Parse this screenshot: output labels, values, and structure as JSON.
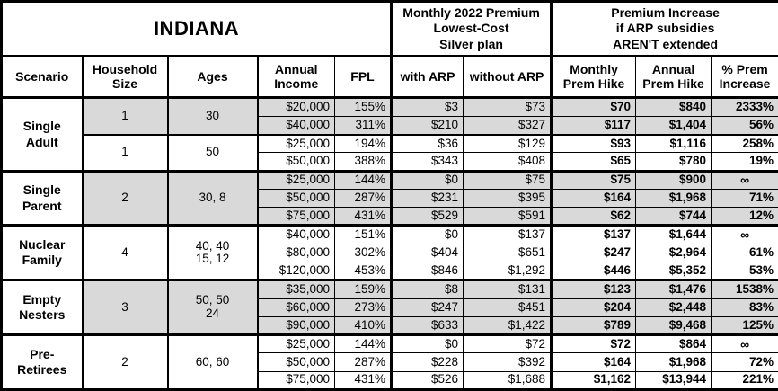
{
  "colors": {
    "border": "#000000",
    "shaded_row": "#d9d9d9",
    "background": "#ffffff"
  },
  "chart_data": {
    "type": "table",
    "title": "INDIANA",
    "group_headers": {
      "premium": "Monthly 2022 Premium\nLowest-Cost\nSilver plan",
      "increase": "Premium Increase\nif ARP subsidies\nAREN'T extended"
    },
    "columns": {
      "scenario": "Scenario",
      "household": "Household\nSize",
      "ages": "Ages",
      "income": "Annual\nIncome",
      "fpl": "FPL",
      "with_arp": "with ARP",
      "without_arp": "without ARP",
      "monthly_hike": "Monthly\nPrem Hike",
      "annual_hike": "Annual\nPrem Hike",
      "pct_increase": "% Prem\nIncrease"
    },
    "groups": [
      {
        "scenario": "Single\nAdult",
        "subgroups": [
          {
            "household": "1",
            "ages": "30",
            "shaded": true,
            "rows": [
              {
                "income": "$20,000",
                "fpl": "155%",
                "with_arp": "$3",
                "without_arp": "$73",
                "monthly_hike": "$70",
                "annual_hike": "$840",
                "pct_increase": "2333%"
              },
              {
                "income": "$40,000",
                "fpl": "311%",
                "with_arp": "$210",
                "without_arp": "$327",
                "monthly_hike": "$117",
                "annual_hike": "$1,404",
                "pct_increase": "56%"
              }
            ]
          },
          {
            "household": "1",
            "ages": "50",
            "shaded": false,
            "rows": [
              {
                "income": "$25,000",
                "fpl": "194%",
                "with_arp": "$36",
                "without_arp": "$129",
                "monthly_hike": "$93",
                "annual_hike": "$1,116",
                "pct_increase": "258%"
              },
              {
                "income": "$50,000",
                "fpl": "388%",
                "with_arp": "$343",
                "without_arp": "$408",
                "monthly_hike": "$65",
                "annual_hike": "$780",
                "pct_increase": "19%"
              }
            ]
          }
        ]
      },
      {
        "scenario": "Single\nParent",
        "subgroups": [
          {
            "household": "2",
            "ages": "30, 8",
            "shaded": true,
            "rows": [
              {
                "income": "$25,000",
                "fpl": "144%",
                "with_arp": "$0",
                "without_arp": "$75",
                "monthly_hike": "$75",
                "annual_hike": "$900",
                "pct_increase": "∞"
              },
              {
                "income": "$50,000",
                "fpl": "287%",
                "with_arp": "$231",
                "without_arp": "$395",
                "monthly_hike": "$164",
                "annual_hike": "$1,968",
                "pct_increase": "71%"
              },
              {
                "income": "$75,000",
                "fpl": "431%",
                "with_arp": "$529",
                "without_arp": "$591",
                "monthly_hike": "$62",
                "annual_hike": "$744",
                "pct_increase": "12%"
              }
            ]
          }
        ]
      },
      {
        "scenario": "Nuclear\nFamily",
        "subgroups": [
          {
            "household": "4",
            "ages": "40, 40\n15, 12",
            "shaded": false,
            "rows": [
              {
                "income": "$40,000",
                "fpl": "151%",
                "with_arp": "$0",
                "without_arp": "$137",
                "monthly_hike": "$137",
                "annual_hike": "$1,644",
                "pct_increase": "∞"
              },
              {
                "income": "$80,000",
                "fpl": "302%",
                "with_arp": "$404",
                "without_arp": "$651",
                "monthly_hike": "$247",
                "annual_hike": "$2,964",
                "pct_increase": "61%"
              },
              {
                "income": "$120,000",
                "fpl": "453%",
                "with_arp": "$846",
                "without_arp": "$1,292",
                "monthly_hike": "$446",
                "annual_hike": "$5,352",
                "pct_increase": "53%"
              }
            ]
          }
        ]
      },
      {
        "scenario": "Empty\nNesters",
        "subgroups": [
          {
            "household": "3",
            "ages": "50, 50\n24",
            "shaded": true,
            "rows": [
              {
                "income": "$35,000",
                "fpl": "159%",
                "with_arp": "$8",
                "without_arp": "$131",
                "monthly_hike": "$123",
                "annual_hike": "$1,476",
                "pct_increase": "1538%"
              },
              {
                "income": "$60,000",
                "fpl": "273%",
                "with_arp": "$247",
                "without_arp": "$451",
                "monthly_hike": "$204",
                "annual_hike": "$2,448",
                "pct_increase": "83%"
              },
              {
                "income": "$90,000",
                "fpl": "410%",
                "with_arp": "$633",
                "without_arp": "$1,422",
                "monthly_hike": "$789",
                "annual_hike": "$9,468",
                "pct_increase": "125%"
              }
            ]
          }
        ]
      },
      {
        "scenario": "Pre-\nRetirees",
        "subgroups": [
          {
            "household": "2",
            "ages": "60, 60",
            "shaded": false,
            "rows": [
              {
                "income": "$25,000",
                "fpl": "144%",
                "with_arp": "$0",
                "without_arp": "$72",
                "monthly_hike": "$72",
                "annual_hike": "$864",
                "pct_increase": "∞"
              },
              {
                "income": "$50,000",
                "fpl": "287%",
                "with_arp": "$228",
                "without_arp": "$392",
                "monthly_hike": "$164",
                "annual_hike": "$1,968",
                "pct_increase": "72%"
              },
              {
                "income": "$75,000",
                "fpl": "431%",
                "with_arp": "$526",
                "without_arp": "$1,688",
                "monthly_hike": "$1,162",
                "annual_hike": "$13,944",
                "pct_increase": "221%"
              }
            ]
          }
        ]
      }
    ]
  }
}
